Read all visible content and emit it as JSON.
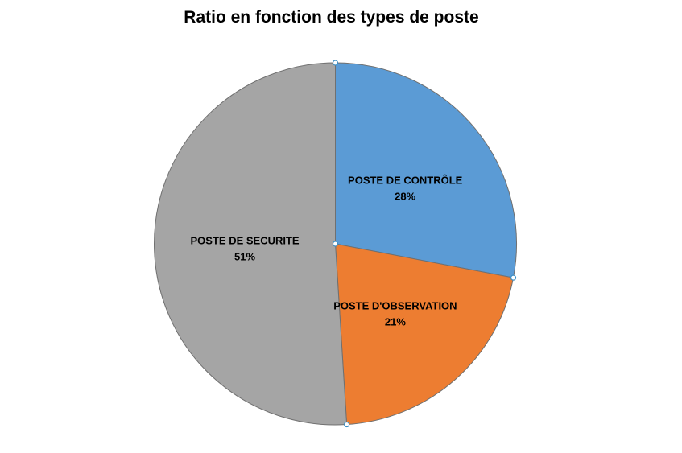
{
  "chart_data": {
    "type": "pie",
    "title": "Ratio en fonction des types de poste",
    "slices": [
      {
        "label": "POSTE DE CONTRÔLE",
        "value": 28,
        "percent_label": "28%",
        "color": "#5b9bd5"
      },
      {
        "label": "POSTE D'OBSERVATION",
        "value": 21,
        "percent_label": "21%",
        "color": "#ed7d31"
      },
      {
        "label": "POSTE DE SECURITE",
        "value": 51,
        "percent_label": "51%",
        "color": "#a5a5a5"
      }
    ],
    "start_angle": "top (12 o'clock), clockwise",
    "legend": "none (data labels inside slices)",
    "selected": true
  }
}
